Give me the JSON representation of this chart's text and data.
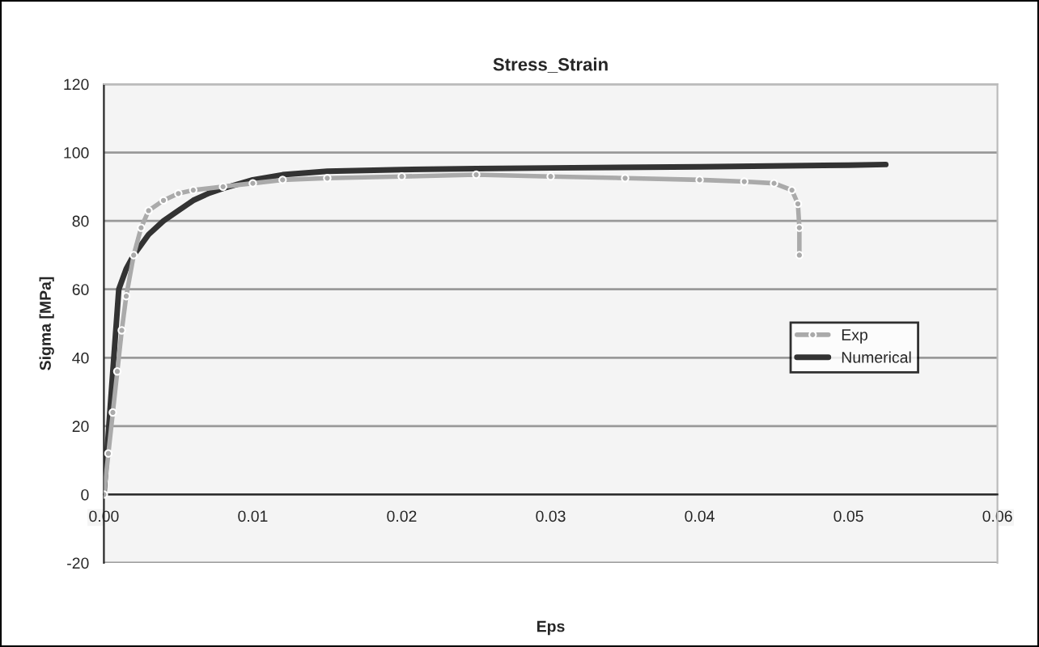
{
  "chart_data": {
    "type": "line",
    "title": "Stress_Strain",
    "xlabel": "Eps",
    "ylabel": "Sigma [MPa]",
    "series": [
      {
        "name": "Exp",
        "color": "#aaaaaa",
        "marker": "circle",
        "x": [
          0,
          0.0003,
          0.0006,
          0.0009,
          0.0012,
          0.0015,
          0.002,
          0.0025,
          0.003,
          0.004,
          0.005,
          0.006,
          0.008,
          0.01,
          0.012,
          0.015,
          0.02,
          0.025,
          0.03,
          0.035,
          0.04,
          0.043,
          0.045,
          0.0462,
          0.0466,
          0.0467,
          0.0467
        ],
        "values": [
          0,
          12,
          24,
          36,
          48,
          58,
          70,
          78,
          83,
          86,
          88,
          89,
          90,
          91,
          92,
          92.5,
          93,
          93.5,
          93,
          92.5,
          92,
          91.5,
          91,
          89,
          85,
          78,
          70
        ]
      },
      {
        "name": "Numerical",
        "color": "#333333",
        "marker": "none",
        "x": [
          0,
          0.0005,
          0.001,
          0.0015,
          0.002,
          0.003,
          0.004,
          0.005,
          0.006,
          0.007,
          0.008,
          0.01,
          0.012,
          0.015,
          0.02,
          0.025,
          0.03,
          0.04,
          0.05,
          0.0525
        ],
        "values": [
          0,
          30,
          60,
          66,
          70,
          76,
          80,
          83,
          86,
          88,
          89.5,
          92,
          93.5,
          94.5,
          95,
          95.3,
          95.5,
          95.8,
          96.3,
          96.5
        ]
      }
    ],
    "xlim": [
      0,
      0.06
    ],
    "xticks": [
      {
        "value": 0,
        "label": "0.00"
      },
      {
        "value": 0.01,
        "label": "0.01"
      },
      {
        "value": 0.02,
        "label": "0.02"
      },
      {
        "value": 0.03,
        "label": "0.03"
      },
      {
        "value": 0.04,
        "label": "0.04"
      },
      {
        "value": 0.05,
        "label": "0.05"
      },
      {
        "value": 0.06,
        "label": "0.06"
      }
    ],
    "ylim": [
      -20,
      120
    ],
    "yticks": [
      -20,
      0,
      20,
      40,
      60,
      80,
      100,
      120
    ],
    "grid": "y",
    "legend": "right",
    "line_style": "solid"
  }
}
